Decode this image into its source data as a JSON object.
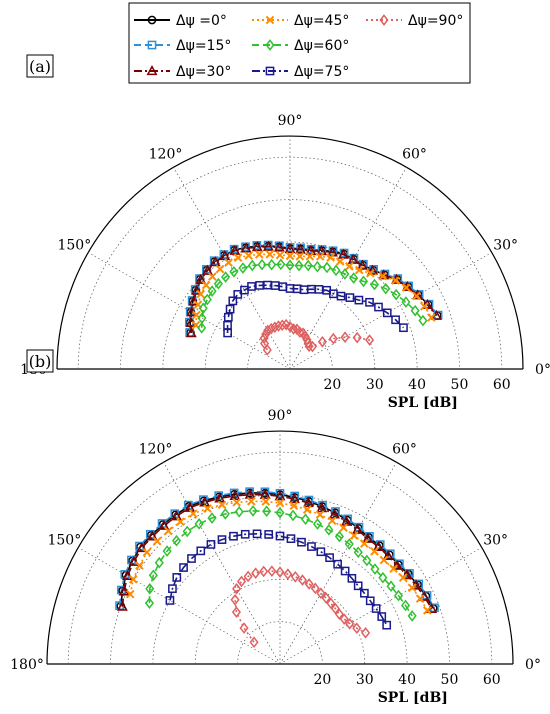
{
  "legend": {
    "entries": [
      {
        "label": "Δψ =0°",
        "color": "#000000",
        "marker": "circle",
        "dash": "solid"
      },
      {
        "label": "Δψ=15°",
        "color": "#2f8fd8",
        "marker": "square",
        "dash": "dash"
      },
      {
        "label": "Δψ=30°",
        "color": "#7b0000",
        "marker": "triangle",
        "dash": "dashdot"
      },
      {
        "label": "Δψ=45°",
        "color": "#ff8c00",
        "marker": "x",
        "dash": "dot"
      },
      {
        "label": "Δψ=60°",
        "color": "#30c030",
        "marker": "diamond",
        "dash": "dash"
      },
      {
        "label": "Δψ=75°",
        "color": "#1a1a8c",
        "marker": "square",
        "dash": "dashdot"
      },
      {
        "label": "Δψ=90°",
        "color": "#e06060",
        "marker": "diamond",
        "dash": "dot"
      }
    ]
  },
  "chart_data": [
    {
      "type": "polar-line",
      "panel_label": "(a)",
      "angle_unit": "deg",
      "angle_range": [
        0,
        180
      ],
      "angle_ticks": [
        "0°",
        "30°",
        "60°",
        "90°",
        "120°",
        "150°",
        "180°"
      ],
      "radial_ticks": [
        "20",
        "30",
        "40",
        "50",
        "60"
      ],
      "radial_range": [
        10,
        65
      ],
      "rlabel": "SPL [dB]",
      "grid": true,
      "series": [
        {
          "name": "Δψ =0°",
          "angles": [
            160,
            155,
            150,
            145,
            140,
            135,
            130,
            125,
            120,
            115,
            110,
            105,
            100,
            95,
            90,
            85,
            80,
            75,
            70,
            65,
            60,
            55,
            50,
            45,
            40,
            35,
            30,
            25,
            20
          ],
          "values": [
            35,
            36,
            37,
            38,
            39,
            40,
            40.5,
            41,
            41,
            41,
            40.5,
            40,
            39.5,
            39,
            38.5,
            38.5,
            38.5,
            39,
            39.5,
            40,
            40,
            40,
            40.5,
            41.5,
            43,
            44,
            45,
            46,
            47
          ]
        },
        {
          "name": "Δψ=15°",
          "angles": [
            160,
            155,
            150,
            145,
            140,
            135,
            130,
            125,
            120,
            115,
            110,
            105,
            100,
            95,
            90,
            85,
            80,
            75,
            70,
            65,
            60,
            55,
            50,
            45,
            40,
            35,
            30,
            25,
            20
          ],
          "values": [
            35.2,
            36.2,
            37.2,
            38.2,
            39.2,
            40.2,
            40.7,
            41.2,
            41.2,
            41.2,
            40.7,
            40.2,
            39.7,
            39.2,
            38.7,
            38.7,
            38.7,
            39.2,
            39.7,
            40.2,
            40.2,
            40.2,
            40.7,
            41.7,
            43.2,
            44.2,
            45.2,
            46.2,
            47.2
          ]
        },
        {
          "name": "Δψ=30°",
          "angles": [
            160,
            155,
            150,
            145,
            140,
            135,
            130,
            125,
            120,
            115,
            110,
            105,
            100,
            95,
            90,
            85,
            80,
            75,
            70,
            65,
            60,
            55,
            50,
            45,
            40,
            35,
            30,
            25,
            20
          ],
          "values": [
            34.8,
            35.8,
            36.8,
            37.8,
            38.8,
            39.8,
            40.3,
            40.8,
            40.8,
            40.8,
            40.3,
            39.8,
            39.3,
            38.8,
            38.3,
            38.3,
            38.3,
            38.8,
            39.3,
            39.8,
            39.8,
            39.8,
            40.3,
            41.3,
            42.8,
            43.8,
            44.8,
            45.8,
            46.8
          ]
        },
        {
          "name": "Δψ=45°",
          "angles": [
            155,
            150,
            145,
            140,
            135,
            130,
            125,
            120,
            115,
            110,
            105,
            100,
            95,
            90,
            85,
            80,
            75,
            70,
            65,
            60,
            55,
            50,
            45,
            40,
            35,
            30,
            25,
            20
          ],
          "values": [
            34.5,
            35.5,
            36.5,
            37.5,
            38,
            38.5,
            38.8,
            39,
            39,
            38.5,
            38,
            37.5,
            37,
            36.7,
            36.7,
            37,
            37.5,
            38,
            38,
            38,
            38.5,
            39.5,
            41,
            42.5,
            43.5,
            44.5,
            45,
            45.5
          ]
        },
        {
          "name": "Δψ=60°",
          "angles": [
            155,
            150,
            145,
            140,
            135,
            130,
            125,
            120,
            115,
            110,
            105,
            100,
            95,
            90,
            85,
            80,
            75,
            70,
            65,
            60,
            55,
            50,
            45,
            40,
            35,
            30,
            25,
            20
          ],
          "values": [
            33,
            34,
            35,
            35.5,
            36,
            36.3,
            36.5,
            36.5,
            36.3,
            36,
            35.5,
            35,
            34.8,
            34.5,
            34.5,
            34.8,
            35,
            35.5,
            35.7,
            35.9,
            36.2,
            37,
            38.2,
            39.5,
            40.6,
            41.6,
            42.6,
            43.4
          ]
        },
        {
          "name": "Δψ=75°",
          "angles": [
            150,
            145,
            140,
            135,
            130,
            125,
            120,
            115,
            110,
            105,
            100,
            95,
            90,
            85,
            80,
            75,
            70,
            65,
            60,
            55,
            50,
            45,
            40,
            35,
            30,
            25,
            20
          ],
          "values": [
            27,
            28,
            29,
            30,
            31,
            31.5,
            31.5,
            31.5,
            31,
            30.5,
            30,
            29.5,
            29,
            29,
            29,
            29.5,
            30,
            30.5,
            30.5,
            31,
            32,
            33,
            34.5,
            35.5,
            36.5,
            37.5,
            38.5
          ]
        },
        {
          "name": "Δψ=90°",
          "angles": [
            140,
            135,
            130,
            125,
            120,
            115,
            110,
            105,
            100,
            95,
            90,
            85,
            80,
            75,
            70,
            65,
            60,
            55,
            50,
            45,
            40,
            35,
            30,
            25,
            20
          ],
          "values": [
            17,
            18.5,
            19.5,
            20,
            20.5,
            20.5,
            20.5,
            20.5,
            20.5,
            20.5,
            20,
            19.5,
            19.5,
            19,
            19,
            18.5,
            18,
            17.5,
            17,
            17.5,
            20,
            22.5,
            25,
            27.5,
            30
          ]
        }
      ]
    },
    {
      "type": "polar-line",
      "panel_label": "(b)",
      "angle_unit": "deg",
      "angle_range": [
        0,
        180
      ],
      "angle_ticks": [
        "0°",
        "30°",
        "60°",
        "90°",
        "120°",
        "150°",
        "180°"
      ],
      "radial_ticks": [
        "20",
        "30",
        "40",
        "50",
        "60"
      ],
      "radial_range": [
        10,
        65
      ],
      "rlabel": "SPL [dB]",
      "grid": true,
      "series": [
        {
          "name": "Δψ =0°",
          "angles": [
            160,
            155,
            150,
            145,
            140,
            135,
            130,
            125,
            120,
            115,
            110,
            105,
            100,
            95,
            90,
            85,
            80,
            75,
            70,
            65,
            60,
            55,
            50,
            45,
            40,
            35,
            30,
            25,
            20
          ],
          "values": [
            50,
            51,
            52,
            52.5,
            53,
            53,
            53,
            53,
            53,
            52.5,
            52,
            51.5,
            51,
            50.5,
            50,
            49.5,
            49,
            48.5,
            48,
            47.5,
            47,
            46.5,
            46.5,
            46.5,
            46.5,
            47,
            47.5,
            48,
            48.5
          ]
        },
        {
          "name": "Δψ=15°",
          "angles": [
            160,
            155,
            150,
            145,
            140,
            135,
            130,
            125,
            120,
            115,
            110,
            105,
            100,
            95,
            90,
            85,
            80,
            75,
            70,
            65,
            60,
            55,
            50,
            45,
            40,
            35,
            30,
            25,
            20
          ],
          "values": [
            50.3,
            51.3,
            52.3,
            52.8,
            53.3,
            53.3,
            53.3,
            53.3,
            53.3,
            52.8,
            52.3,
            51.8,
            51.3,
            50.8,
            50.3,
            49.8,
            49.3,
            48.8,
            48.3,
            47.8,
            47.3,
            46.8,
            46.8,
            46.8,
            46.8,
            47.3,
            47.8,
            48.3,
            48.8
          ]
        },
        {
          "name": "Δψ=30°",
          "angles": [
            160,
            155,
            150,
            145,
            140,
            135,
            130,
            125,
            120,
            115,
            110,
            105,
            100,
            95,
            90,
            85,
            80,
            75,
            70,
            65,
            60,
            55,
            50,
            45,
            40,
            35,
            30,
            25,
            20
          ],
          "values": [
            49.6,
            50.6,
            51.6,
            52.1,
            52.6,
            52.6,
            52.6,
            52.6,
            52.6,
            52.1,
            51.6,
            51.1,
            50.6,
            50.1,
            49.6,
            49.1,
            48.6,
            48.1,
            47.6,
            47.1,
            46.6,
            46.1,
            46.1,
            46.1,
            46.1,
            46.6,
            47.1,
            47.6,
            48.1
          ]
        },
        {
          "name": "Δψ=45°",
          "angles": [
            155,
            150,
            145,
            140,
            135,
            130,
            125,
            120,
            115,
            110,
            105,
            100,
            95,
            90,
            85,
            80,
            75,
            70,
            65,
            60,
            55,
            50,
            45,
            40,
            35,
            30,
            25,
            20
          ],
          "values": [
            49,
            50,
            50.5,
            51,
            51,
            51,
            51,
            51,
            50.5,
            50,
            49.5,
            49,
            48.5,
            48,
            47.5,
            47,
            46.5,
            46,
            45.5,
            45,
            44.7,
            44.7,
            44.7,
            45,
            45.5,
            46,
            46.5,
            47
          ]
        },
        {
          "name": "Δψ=60°",
          "angles": [
            155,
            150,
            145,
            140,
            135,
            130,
            125,
            120,
            115,
            110,
            105,
            100,
            95,
            90,
            85,
            80,
            75,
            70,
            65,
            60,
            55,
            50,
            45,
            40,
            35,
            30,
            25,
            20
          ],
          "values": [
            44,
            45.5,
            46.5,
            47.2,
            47.7,
            48,
            48.2,
            48.2,
            48,
            47.7,
            47.2,
            46.7,
            46.2,
            45.7,
            45.2,
            44.7,
            44.2,
            43.7,
            43.2,
            42.7,
            42.2,
            41.9,
            41.7,
            41.7,
            42,
            42.3,
            42.7,
            43.2
          ]
        },
        {
          "name": "Δψ=75°",
          "angles": [
            150,
            145,
            140,
            135,
            130,
            125,
            120,
            115,
            110,
            105,
            100,
            95,
            90,
            85,
            80,
            75,
            70,
            65,
            60,
            55,
            50,
            45,
            40,
            35,
            30,
            25,
            20
          ],
          "values": [
            40,
            41,
            41.8,
            42.2,
            42.5,
            42.6,
            42.6,
            42.4,
            42.1,
            41.7,
            41.2,
            40.7,
            40.2,
            39.7,
            39.2,
            38.7,
            38.2,
            37.7,
            37.2,
            36.8,
            36.4,
            36.1,
            36,
            36,
            36.2,
            36.5,
            36.8
          ]
        },
        {
          "name": "Δψ=90°",
          "angles": [
            140,
            135,
            130,
            125,
            120,
            115,
            110,
            105,
            100,
            95,
            90,
            85,
            80,
            75,
            70,
            65,
            60,
            55,
            50,
            45,
            40,
            35,
            30,
            25,
            20
          ],
          "values": [
            18,
            22,
            26,
            28.5,
            30.5,
            31.5,
            32,
            32.2,
            32.2,
            32,
            31.7,
            31.3,
            30.9,
            30.5,
            30.1,
            29.7,
            29.3,
            29,
            28.7,
            28.5,
            28.3,
            28.5,
            29,
            30,
            31.5
          ]
        }
      ]
    }
  ]
}
